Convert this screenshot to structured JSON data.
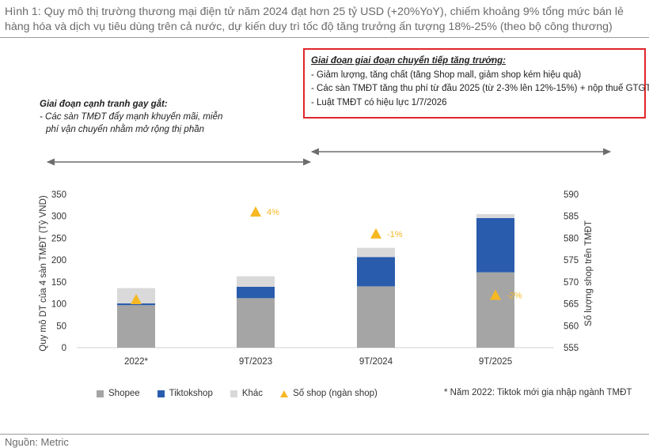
{
  "title": "Hình 1: Quy mô thị trường thương mại điện tử năm 2024 đạt hơn 25 tỷ USD (+20%YoY), chiếm khoảng 9% tổng mức bán lẻ hàng hóa và dịch vụ tiêu dùng trên cả nước, dự kiến duy trì tốc độ tăng trưởng ấn tượng 18%-25% (theo bộ công thương)",
  "source": "Nguồn: Metric",
  "note_left": {
    "head": "Giai đoạn cạnh tranh gay gắt:",
    "line1": "- Các sàn TMĐT đẩy mạnh khuyến mãi, miễn",
    "line2": "phí vận chuyển nhằm mở rộng thị phần"
  },
  "note_box": {
    "head": "Giai đoạn giai đoạn chuyển tiếp tăng trưởng:",
    "items": [
      "- Giảm lượng, tăng chất (tăng Shop mall, giảm shop kém hiệu quả)",
      "- Các sàn TMĐT tăng thu phí từ đầu 2025 (từ 2-3% lên 12%-15%) + nộp thuế GTGT",
      "- Luật TMĐT có hiệu lực 1/7/2026"
    ]
  },
  "footnote": "* Năm 2022: Tiktok mới gia nhập ngành TMĐT",
  "colors": {
    "shopee": "#a5a5a5",
    "tiktok": "#2a5cad",
    "khac": "#d9d9d9",
    "shops": "#f6b823",
    "arrow": "#6d6d6d"
  },
  "chart_data": {
    "type": "bar",
    "stacked": true,
    "categories": [
      "2022*",
      "9T/2023",
      "9T/2024",
      "9T/2025"
    ],
    "series": [
      {
        "name": "Shopee",
        "values": [
          97,
          113,
          140,
          172
        ]
      },
      {
        "name": "Tiktokshop",
        "values": [
          4,
          26,
          67,
          124
        ]
      },
      {
        "name": "Khác",
        "values": [
          35,
          24,
          21,
          9
        ]
      }
    ],
    "line_series": {
      "name": "Số shop (ngàn shop)",
      "axis": "right",
      "marker": "triangle",
      "values": [
        566,
        586,
        581,
        567
      ],
      "labels": [
        "",
        "4%",
        "-1%",
        "-2%"
      ]
    },
    "ylabel": "Quy mô DT của 4 sàn TMĐT (Tỷ VND)",
    "ylabel_right": "Số lượng shop trên TMĐT",
    "ylim": [
      0,
      350
    ],
    "yticks": [
      0,
      50,
      100,
      150,
      200,
      250,
      300,
      350
    ],
    "ylim_right": [
      555,
      590
    ],
    "yticks_right": [
      555,
      560,
      565,
      570,
      575,
      580,
      585,
      590
    ],
    "legend": [
      "Shopee",
      "Tiktokshop",
      "Khác",
      "Số shop (ngàn shop)"
    ],
    "legend_position": "bottom",
    "grid": false
  }
}
